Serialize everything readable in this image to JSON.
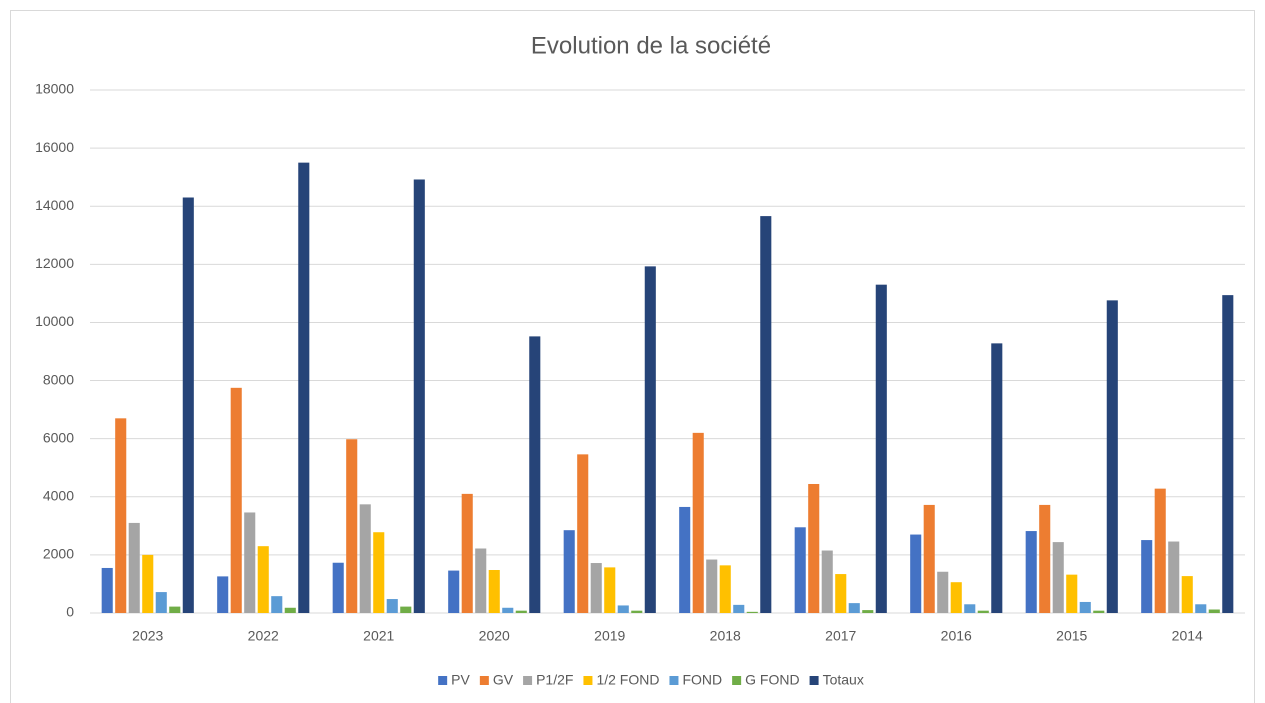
{
  "chart_data": {
    "type": "bar",
    "title": "Evolution de la société",
    "categories": [
      "2023",
      "2022",
      "2021",
      "2020",
      "2019",
      "2018",
      "2017",
      "2016",
      "2015",
      "2014"
    ],
    "series": [
      {
        "name": "PV",
        "color": "#4472c4",
        "values": [
          1550,
          1260,
          1730,
          1460,
          2850,
          3650,
          2950,
          2700,
          2820,
          2510
        ]
      },
      {
        "name": "GV",
        "color": "#ed7d31",
        "values": [
          6700,
          7750,
          5980,
          4100,
          5460,
          6200,
          4440,
          3720,
          3720,
          4280
        ]
      },
      {
        "name": "P1/2F",
        "color": "#a5a5a5",
        "values": [
          3100,
          3460,
          3740,
          2220,
          1720,
          1840,
          2150,
          1420,
          2440,
          2460
        ]
      },
      {
        "name": "1/2 FOND",
        "color": "#ffc000",
        "values": [
          2000,
          2300,
          2780,
          1480,
          1570,
          1640,
          1340,
          1060,
          1320,
          1270
        ]
      },
      {
        "name": "FOND",
        "color": "#5b9bd5",
        "values": [
          720,
          580,
          480,
          180,
          260,
          280,
          340,
          300,
          380,
          300
        ]
      },
      {
        "name": "G FOND",
        "color": "#70ad47",
        "values": [
          220,
          180,
          220,
          80,
          80,
          40,
          100,
          80,
          80,
          120
        ]
      },
      {
        "name": "Totaux",
        "color": "#264478",
        "values": [
          14300,
          15500,
          14920,
          9520,
          11930,
          13660,
          11300,
          9280,
          10760,
          10940
        ]
      }
    ],
    "ylim": [
      0,
      18000
    ],
    "yticks": [
      0,
      2000,
      4000,
      6000,
      8000,
      10000,
      12000,
      14000,
      16000,
      18000
    ],
    "grid": true,
    "legend": "bottom"
  }
}
